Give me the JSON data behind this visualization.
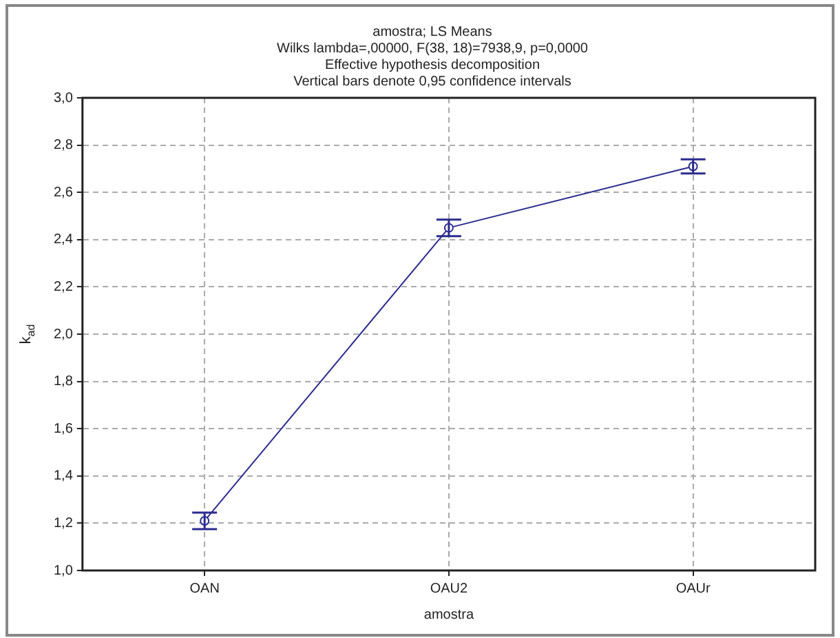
{
  "chart_data": {
    "type": "line",
    "title": "amostra; LS Means",
    "subtitle": "Wilks lambda=,00000, F(38, 18)=7938,9, p=0,0000\nEffective hypothesis decomposition",
    "annotations": [
      "Vertical bars denote 0,95 confidence intervals"
    ],
    "xlabel": "amostra",
    "ylabel": "k$_{ad}$",
    "categories": [
      "OAN",
      "OAU2",
      "OAUr"
    ],
    "series": [
      {
        "color": "#2b2b8f",
        "values": [
          1.21,
          2.45,
          2.71
        ],
        "errors": [
          0.035,
          0.035,
          0.03
        ]
      }
    ],
    "ylim": [
      1.0,
      3.0
    ],
    "yticks": [
      {
        "value": 1.0,
        "label": "1,0"
      },
      {
        "value": 1.2,
        "label": "1,2"
      },
      {
        "value": 1.4,
        "label": "1,4"
      },
      {
        "value": 1.6,
        "label": "1,6"
      },
      {
        "value": 1.8,
        "label": "1,8"
      },
      {
        "value": 2.0,
        "label": "2,0"
      },
      {
        "value": 2.2,
        "label": "2,2"
      },
      {
        "value": 2.4,
        "label": "2,4"
      },
      {
        "value": 2.6,
        "label": "2,6"
      },
      {
        "value": 2.8,
        "label": "2,8"
      },
      {
        "value": 3.0,
        "label": "3,0"
      }
    ],
    "grid": true,
    "legend": false,
    "marker": "circle",
    "line_style": "solid"
  }
}
